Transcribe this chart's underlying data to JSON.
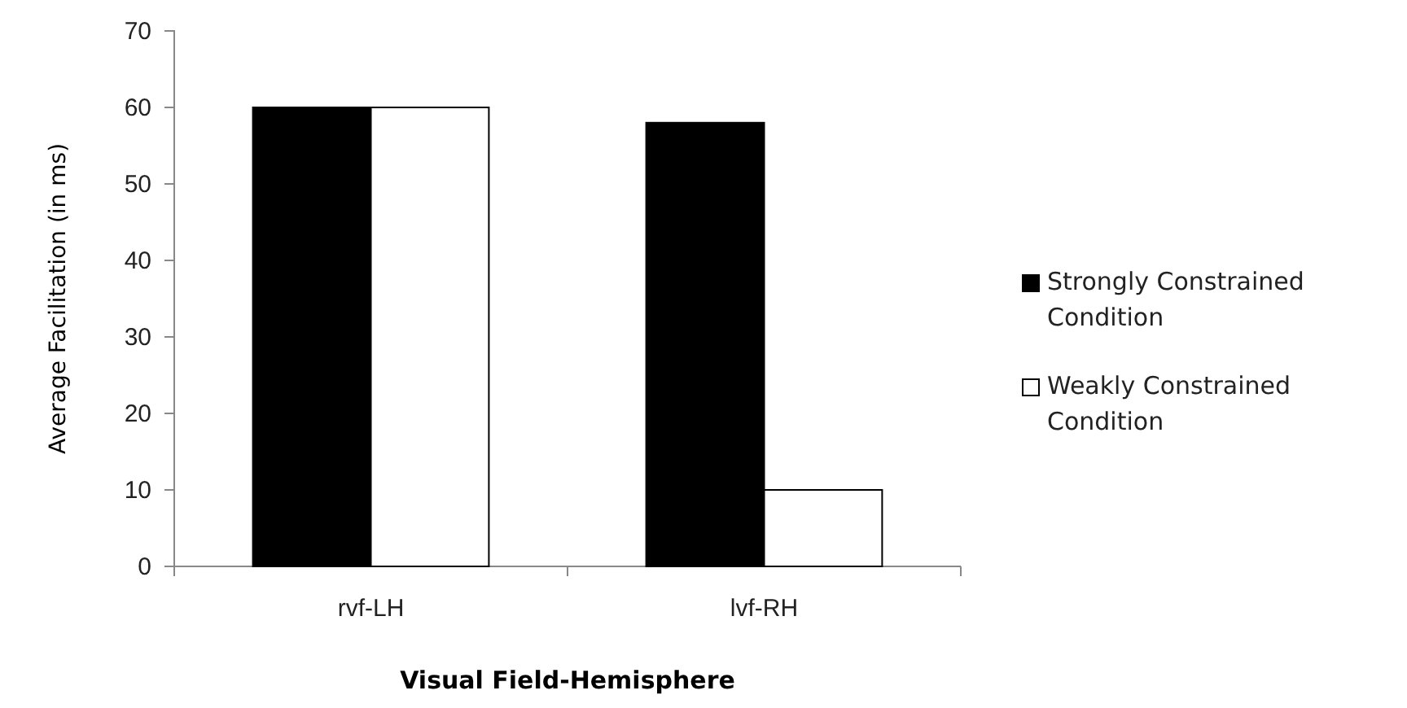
{
  "chart_data": {
    "type": "bar",
    "xlabel": "Visual Field-Hemisphere",
    "ylabel": "Average Facilitation (in ms)",
    "categories": [
      "rvf-LH",
      "lvf-RH"
    ],
    "series": [
      {
        "name": "Strongly Constrained Condition",
        "color": "#000000",
        "values": [
          60,
          58
        ]
      },
      {
        "name": "Weakly Constrained Condition",
        "color": "#ffffff",
        "values": [
          60,
          10
        ]
      }
    ],
    "ylim": [
      0,
      70
    ],
    "yticks": [
      0,
      10,
      20,
      30,
      40,
      50,
      60,
      70
    ],
    "grid": false,
    "legend": "right"
  }
}
